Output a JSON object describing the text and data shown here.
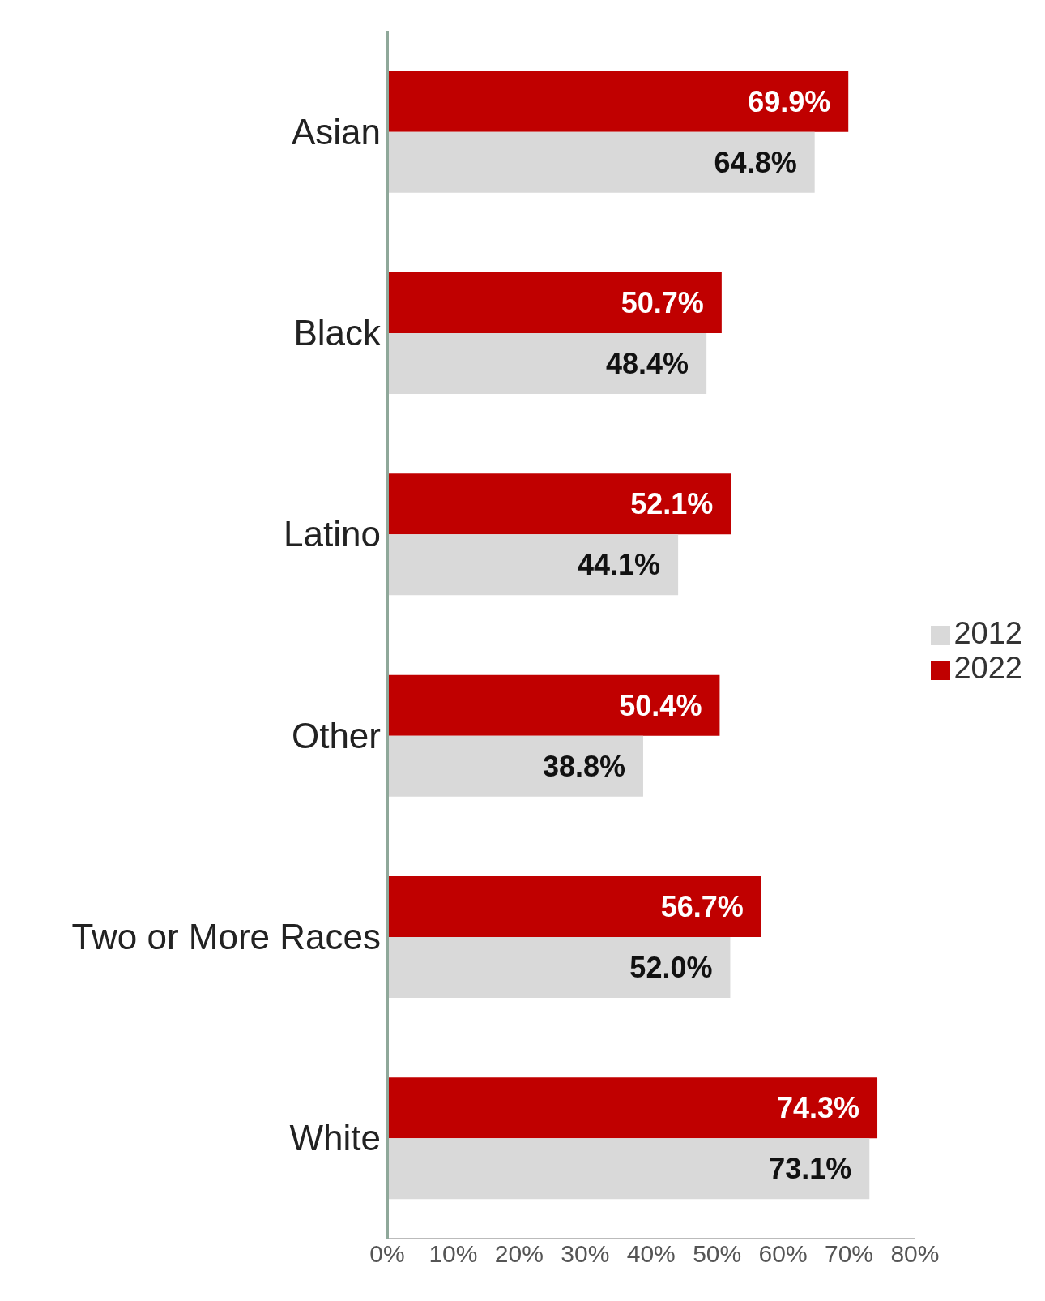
{
  "chart_data": {
    "type": "bar",
    "orientation": "horizontal",
    "categories": [
      "Asian",
      "Black",
      "Latino",
      "Other",
      "Two or More Races",
      "White"
    ],
    "series": [
      {
        "name": "2022",
        "color": "#c00000",
        "values": [
          69.9,
          50.7,
          52.1,
          50.4,
          56.7,
          74.3
        ],
        "value_labels": [
          "69.9%",
          "50.7%",
          "52.1%",
          "50.4%",
          "56.7%",
          "74.3%"
        ]
      },
      {
        "name": "2012",
        "color": "#d9d9d9",
        "values": [
          64.8,
          48.4,
          44.1,
          38.8,
          52.0,
          73.1
        ],
        "value_labels": [
          "64.8%",
          "48.4%",
          "44.1%",
          "38.8%",
          "52.0%",
          "73.1%"
        ]
      }
    ],
    "xlim": [
      0,
      80
    ],
    "xticks": [
      {
        "value": 0,
        "label": "0%"
      },
      {
        "value": 10,
        "label": "10%"
      },
      {
        "value": 20,
        "label": "20%"
      },
      {
        "value": 30,
        "label": "30%"
      },
      {
        "value": 40,
        "label": "40%"
      },
      {
        "value": 50,
        "label": "50%"
      },
      {
        "value": 60,
        "label": "60%"
      },
      {
        "value": 70,
        "label": "70%"
      },
      {
        "value": 80,
        "label": "80%"
      }
    ],
    "legend": "right",
    "grid": false
  }
}
